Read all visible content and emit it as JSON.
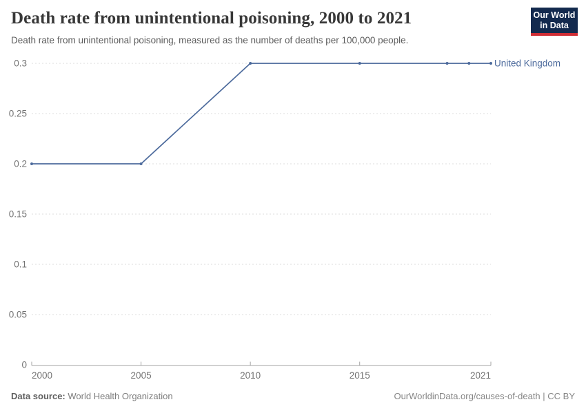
{
  "header": {
    "title": "Death rate from unintentional poisoning, 2000 to 2021",
    "subtitle": "Death rate from unintentional poisoning, measured as the number of deaths per 100,000 people."
  },
  "logo": {
    "line1": "Our World",
    "line2": "in Data",
    "background": "#132a4e",
    "accent": "#cf2d35"
  },
  "chart_data": {
    "type": "line",
    "title": "Death rate from unintentional poisoning, 2000 to 2021",
    "xlabel": "",
    "ylabel": "",
    "xlim": [
      2000,
      2021
    ],
    "ylim": [
      0,
      0.3
    ],
    "xticks": [
      2000,
      2005,
      2010,
      2015,
      2021
    ],
    "yticks": [
      0,
      0.05,
      0.1,
      0.15,
      0.2,
      0.25,
      0.3
    ],
    "ytick_labels": [
      "0",
      "0.05",
      "0.1",
      "0.15",
      "0.2",
      "0.25",
      "0.3"
    ],
    "grid": true,
    "grid_style": "dashed",
    "legend_position": "end-of-line",
    "series": [
      {
        "name": "United Kingdom",
        "color": "#4c6a9c",
        "points": [
          {
            "year": 2000,
            "value": 0.2
          },
          {
            "year": 2005,
            "value": 0.2
          },
          {
            "year": 2010,
            "value": 0.3
          },
          {
            "year": 2015,
            "value": 0.3
          },
          {
            "year": 2019,
            "value": 0.3
          },
          {
            "year": 2020,
            "value": 0.3
          },
          {
            "year": 2021,
            "value": 0.3
          }
        ]
      }
    ]
  },
  "colors": {
    "grid": "#dcdcdc",
    "axis": "#a3a3a3",
    "tick_label": "#737373"
  },
  "footer": {
    "source_label": "Data source:",
    "source_value": "World Health Organization",
    "link": "OurWorldinData.org/causes-of-death | CC BY"
  }
}
